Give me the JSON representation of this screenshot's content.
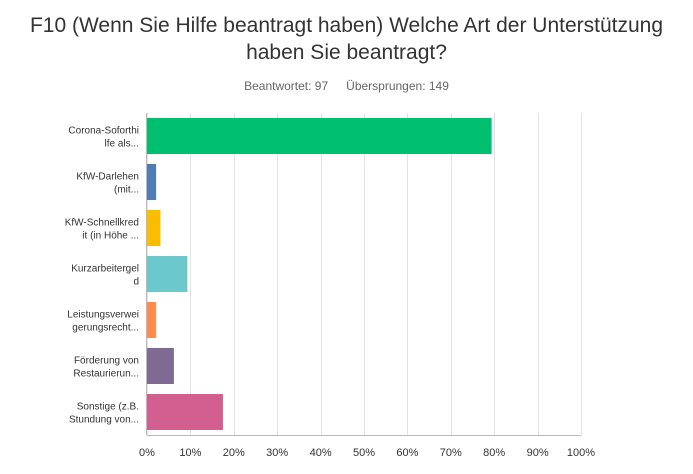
{
  "question": {
    "title_line1": "F10 (Wenn Sie Hilfe beantragt haben) Welche Art der Unterstützung",
    "title_line2": "haben Sie beantragt?"
  },
  "stats": {
    "answered": "Beantwortet: 97",
    "skipped": "Übersprungen: 149"
  },
  "chart_data": {
    "type": "bar",
    "orientation": "horizontal",
    "categories": [
      [
        "Corona-Soforthi",
        "lfe als..."
      ],
      [
        "KfW-Darlehen",
        "(mit..."
      ],
      [
        "KfW-Schnellkred",
        "it (in Höhe ..."
      ],
      [
        "Kurzarbeitergel",
        "d"
      ],
      [
        "Leistungsverwei",
        "gerungsrecht..."
      ],
      [
        "Förderung von",
        "Restaurierun..."
      ],
      [
        "Sonstige (z.B.",
        "Stundung von..."
      ]
    ],
    "values": [
      79.4,
      2.1,
      3.1,
      9.3,
      2.1,
      6.2,
      17.5
    ],
    "colors": [
      "#00bf6f",
      "#507cb6",
      "#f9be00",
      "#6bc8cd",
      "#ff8b4f",
      "#7f6a93",
      "#d25f90"
    ],
    "xlim": [
      0,
      100
    ],
    "xticks": [
      "0%",
      "10%",
      "20%",
      "30%",
      "40%",
      "50%",
      "60%",
      "70%",
      "80%",
      "90%",
      "100%"
    ],
    "grid": true
  }
}
